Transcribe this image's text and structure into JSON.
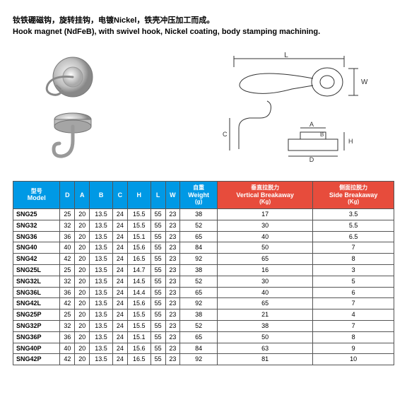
{
  "title_cn": "钕铁硼磁钩，旋转挂钩，电镀Nickel，铁壳冲压加工而成。",
  "title_en": "Hook magnet (NdFeB), with swivel hook, Nickel coating, body stamping machining.",
  "diagram_labels": [
    "L",
    "W",
    "D",
    "A",
    "B",
    "C",
    "H"
  ],
  "table": {
    "columns": [
      {
        "key": "model",
        "cn": "型号",
        "en": "Model",
        "hclass": "blue"
      },
      {
        "key": "D",
        "cn": "",
        "en": "D",
        "hclass": "blue"
      },
      {
        "key": "A",
        "cn": "",
        "en": "A",
        "hclass": "blue"
      },
      {
        "key": "B",
        "cn": "",
        "en": "B",
        "hclass": "blue"
      },
      {
        "key": "C",
        "cn": "",
        "en": "C",
        "hclass": "blue"
      },
      {
        "key": "H",
        "cn": "",
        "en": "H",
        "hclass": "blue"
      },
      {
        "key": "L",
        "cn": "",
        "en": "L",
        "hclass": "blue"
      },
      {
        "key": "W",
        "cn": "",
        "en": "W",
        "hclass": "blue"
      },
      {
        "key": "weight",
        "cn": "自重",
        "en": "Weight",
        "unit": "(g)",
        "hclass": "blue"
      },
      {
        "key": "vert",
        "cn": "垂直拉脱力",
        "en": "Vertical Breakaway",
        "unit": "(Kg)",
        "hclass": "red"
      },
      {
        "key": "side",
        "cn": "侧面拉脱力",
        "en": "Side Breakaway",
        "unit": "(Kg)",
        "hclass": "red"
      }
    ],
    "rows": [
      [
        "SNG25",
        "25",
        "20",
        "13.5",
        "24",
        "15.5",
        "55",
        "23",
        "38",
        "17",
        "3.5"
      ],
      [
        "SNG32",
        "32",
        "20",
        "13.5",
        "24",
        "15.5",
        "55",
        "23",
        "52",
        "30",
        "5.5"
      ],
      [
        "SNG36",
        "36",
        "20",
        "13.5",
        "24",
        "15.1",
        "55",
        "23",
        "65",
        "40",
        "6.5"
      ],
      [
        "SNG40",
        "40",
        "20",
        "13.5",
        "24",
        "15.6",
        "55",
        "23",
        "84",
        "50",
        "7"
      ],
      [
        "SNG42",
        "42",
        "20",
        "13.5",
        "24",
        "16.5",
        "55",
        "23",
        "92",
        "65",
        "8"
      ],
      [
        "SNG25L",
        "25",
        "20",
        "13.5",
        "24",
        "14.7",
        "55",
        "23",
        "38",
        "16",
        "3"
      ],
      [
        "SNG32L",
        "32",
        "20",
        "13.5",
        "24",
        "14.5",
        "55",
        "23",
        "52",
        "30",
        "5"
      ],
      [
        "SNG36L",
        "36",
        "20",
        "13.5",
        "24",
        "14.4",
        "55",
        "23",
        "65",
        "40",
        "6"
      ],
      [
        "SNG42L",
        "42",
        "20",
        "13.5",
        "24",
        "15.6",
        "55",
        "23",
        "92",
        "65",
        "7"
      ],
      [
        "SNG25P",
        "25",
        "20",
        "13.5",
        "24",
        "15.5",
        "55",
        "23",
        "38",
        "21",
        "4"
      ],
      [
        "SNG32P",
        "32",
        "20",
        "13.5",
        "24",
        "15.5",
        "55",
        "23",
        "52",
        "38",
        "7"
      ],
      [
        "SNG36P",
        "36",
        "20",
        "13.5",
        "24",
        "15.1",
        "55",
        "23",
        "65",
        "50",
        "8"
      ],
      [
        "SNG40P",
        "40",
        "20",
        "13.5",
        "24",
        "15.6",
        "55",
        "23",
        "84",
        "63",
        "9"
      ],
      [
        "SNG42P",
        "42",
        "20",
        "13.5",
        "24",
        "16.5",
        "55",
        "23",
        "92",
        "81",
        "10"
      ]
    ]
  },
  "colors": {
    "header_blue": "#0099e5",
    "header_red": "#e74c3c",
    "border": "#555555",
    "background": "#ffffff",
    "text": "#000000"
  },
  "fonts": {
    "title_size_pt": 11,
    "table_size_pt": 9,
    "header_sub_size_pt": 8
  }
}
